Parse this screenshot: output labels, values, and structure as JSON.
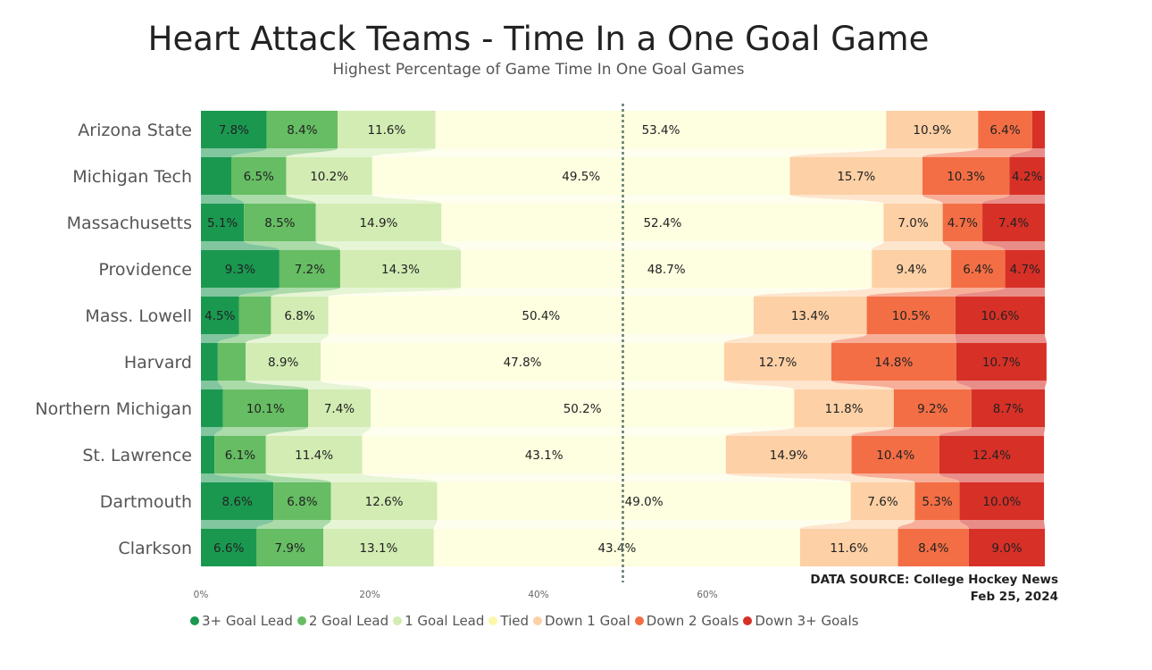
{
  "chart_data": {
    "type": "bar",
    "stacked": "100%",
    "orientation": "horizontal",
    "title": "Heart Attack Teams - Time In a One Goal Game",
    "subtitle": "Highest Percentage of Game Time In One Goal Games",
    "categories": [
      "Arizona State",
      "Michigan Tech",
      "Massachusetts",
      "Providence",
      "Mass. Lowell",
      "Harvard",
      "Northern Michigan",
      "St. Lawrence",
      "Dartmouth",
      "Clarkson"
    ],
    "series": [
      {
        "name": "3+ Goal Lead",
        "color": "#1a9850",
        "values": [
          7.8,
          3.6,
          5.1,
          9.3,
          4.5,
          2.0,
          2.6,
          1.6,
          8.6,
          6.6
        ],
        "labels": [
          "7.8%",
          "",
          "5.1%",
          "9.3%",
          "4.5%",
          "",
          "",
          "",
          "8.6%",
          "6.6%"
        ]
      },
      {
        "name": "2 Goal Lead",
        "color": "#66bd63",
        "values": [
          8.4,
          6.5,
          8.5,
          7.2,
          3.8,
          3.3,
          10.1,
          6.1,
          6.8,
          7.9
        ],
        "labels": [
          "8.4%",
          "6.5%",
          "8.5%",
          "7.2%",
          "",
          "",
          "10.1%",
          "6.1%",
          "6.8%",
          "7.9%"
        ]
      },
      {
        "name": "1 Goal Lead",
        "color": "#d2ecb3",
        "values": [
          11.6,
          10.2,
          14.9,
          14.3,
          6.8,
          8.9,
          7.4,
          11.4,
          12.6,
          13.1
        ],
        "labels": [
          "11.6%",
          "10.2%",
          "14.9%",
          "14.3%",
          "6.8%",
          "8.9%",
          "7.4%",
          "11.4%",
          "12.6%",
          "13.1%"
        ]
      },
      {
        "name": "Tied",
        "color": "#fefee0",
        "values": [
          53.4,
          49.5,
          52.4,
          48.7,
          50.4,
          47.8,
          50.2,
          43.1,
          49.0,
          43.4
        ],
        "labels": [
          "53.4%",
          "49.5%",
          "52.4%",
          "48.7%",
          "50.4%",
          "47.8%",
          "50.2%",
          "43.1%",
          "49.0%",
          "43.4%"
        ]
      },
      {
        "name": "Down 1 Goal",
        "color": "#fdd0a5",
        "values": [
          10.9,
          15.7,
          7.0,
          9.4,
          13.4,
          12.7,
          11.8,
          14.9,
          7.6,
          11.6
        ],
        "labels": [
          "10.9%",
          "15.7%",
          "7.0%",
          "9.4%",
          "13.4%",
          "12.7%",
          "11.8%",
          "14.9%",
          "7.6%",
          "11.6%"
        ]
      },
      {
        "name": "Down 2 Goals",
        "color": "#f36e45",
        "values": [
          6.4,
          10.3,
          4.7,
          6.4,
          10.5,
          14.8,
          9.2,
          10.4,
          5.3,
          8.4
        ],
        "labels": [
          "6.4%",
          "10.3%",
          "4.7%",
          "6.4%",
          "10.5%",
          "14.8%",
          "9.2%",
          "10.4%",
          "5.3%",
          "8.4%"
        ]
      },
      {
        "name": "Down 3+ Goals",
        "color": "#d73027",
        "values": [
          1.5,
          4.2,
          7.4,
          4.7,
          10.6,
          10.7,
          8.7,
          12.4,
          10.0,
          9.0
        ],
        "labels": [
          "",
          "4.2%",
          "7.4%",
          "4.7%",
          "10.6%",
          "10.7%",
          "8.7%",
          "12.4%",
          "10.0%",
          "9.0%"
        ]
      }
    ],
    "xlim": [
      0,
      100
    ],
    "xticks": [
      0,
      20,
      40,
      60
    ],
    "xtick_labels": [
      "0%",
      "20%",
      "40%",
      "60%"
    ],
    "reference_line": 50,
    "legend_position": "bottom-left",
    "grid": false
  },
  "source": {
    "line1": "DATA SOURCE: College Hockey News",
    "line2": "Feb 25, 2024"
  }
}
